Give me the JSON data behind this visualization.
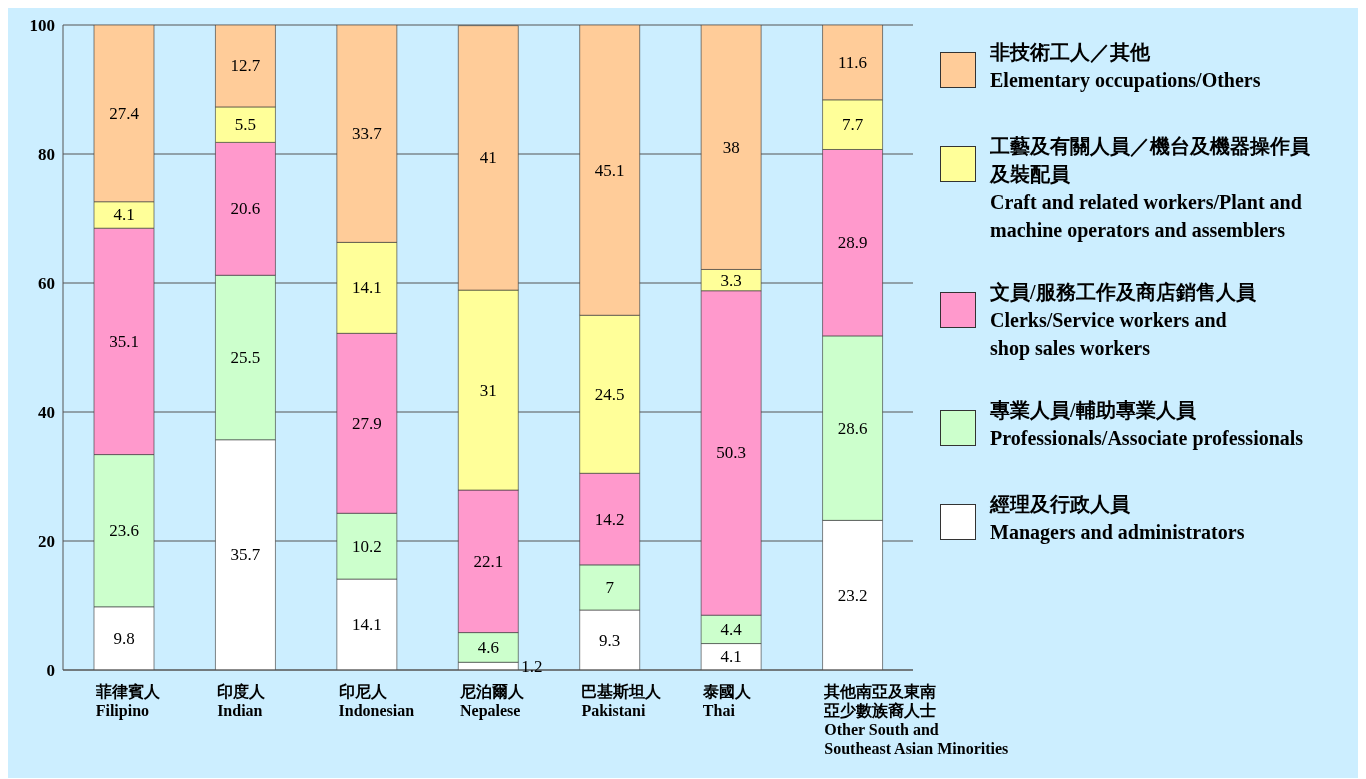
{
  "chart_data": {
    "type": "bar",
    "stacked": true,
    "categories": [
      "菲律賓人\nFilipino",
      "印度人\nIndian",
      "印尼人\nIndonesian",
      "尼泊爾人\nNepalese",
      "巴基斯坦人\nPakistani",
      "泰國人\nThai",
      "其他南亞及東南亞少數族裔人士\nOther South and\nSoutheast Asian Minorities"
    ],
    "series": [
      {
        "name": "經理及行政人員\nManagers and administrators",
        "color": "#ffffff",
        "values": [
          9.8,
          35.7,
          14.1,
          1.2,
          9.3,
          4.1,
          23.2
        ]
      },
      {
        "name": "專業人員/輔助專業人員\nProfessionals/Associate professionals",
        "color": "#ccffcc",
        "values": [
          23.6,
          25.5,
          10.2,
          4.6,
          7,
          4.4,
          28.6
        ]
      },
      {
        "name": "文員/服務工作及商店銷售人員\nClerks/Service workers and\nshop sales workers",
        "color": "#ff99cc",
        "values": [
          35.1,
          20.6,
          27.9,
          22.1,
          14.2,
          50.3,
          28.9
        ]
      },
      {
        "name": "工藝及有關人員／機台及機器操作員及裝配員\nCraft and related workers/Plant and\nmachine operators and assemblers",
        "color": "#ffff99",
        "values": [
          4.1,
          5.5,
          14.1,
          31,
          24.5,
          3.3,
          7.7
        ]
      },
      {
        "name": "非技術工人／其他\nElementary occupations/Others",
        "color": "#ffcc99",
        "values": [
          27.4,
          12.7,
          33.7,
          41,
          45.1,
          38,
          11.6
        ]
      }
    ],
    "ylim": [
      0,
      100
    ],
    "yticks": [
      0,
      20,
      40,
      60,
      80,
      100
    ],
    "grid": "y",
    "legend": "right",
    "data_labels": true
  }
}
